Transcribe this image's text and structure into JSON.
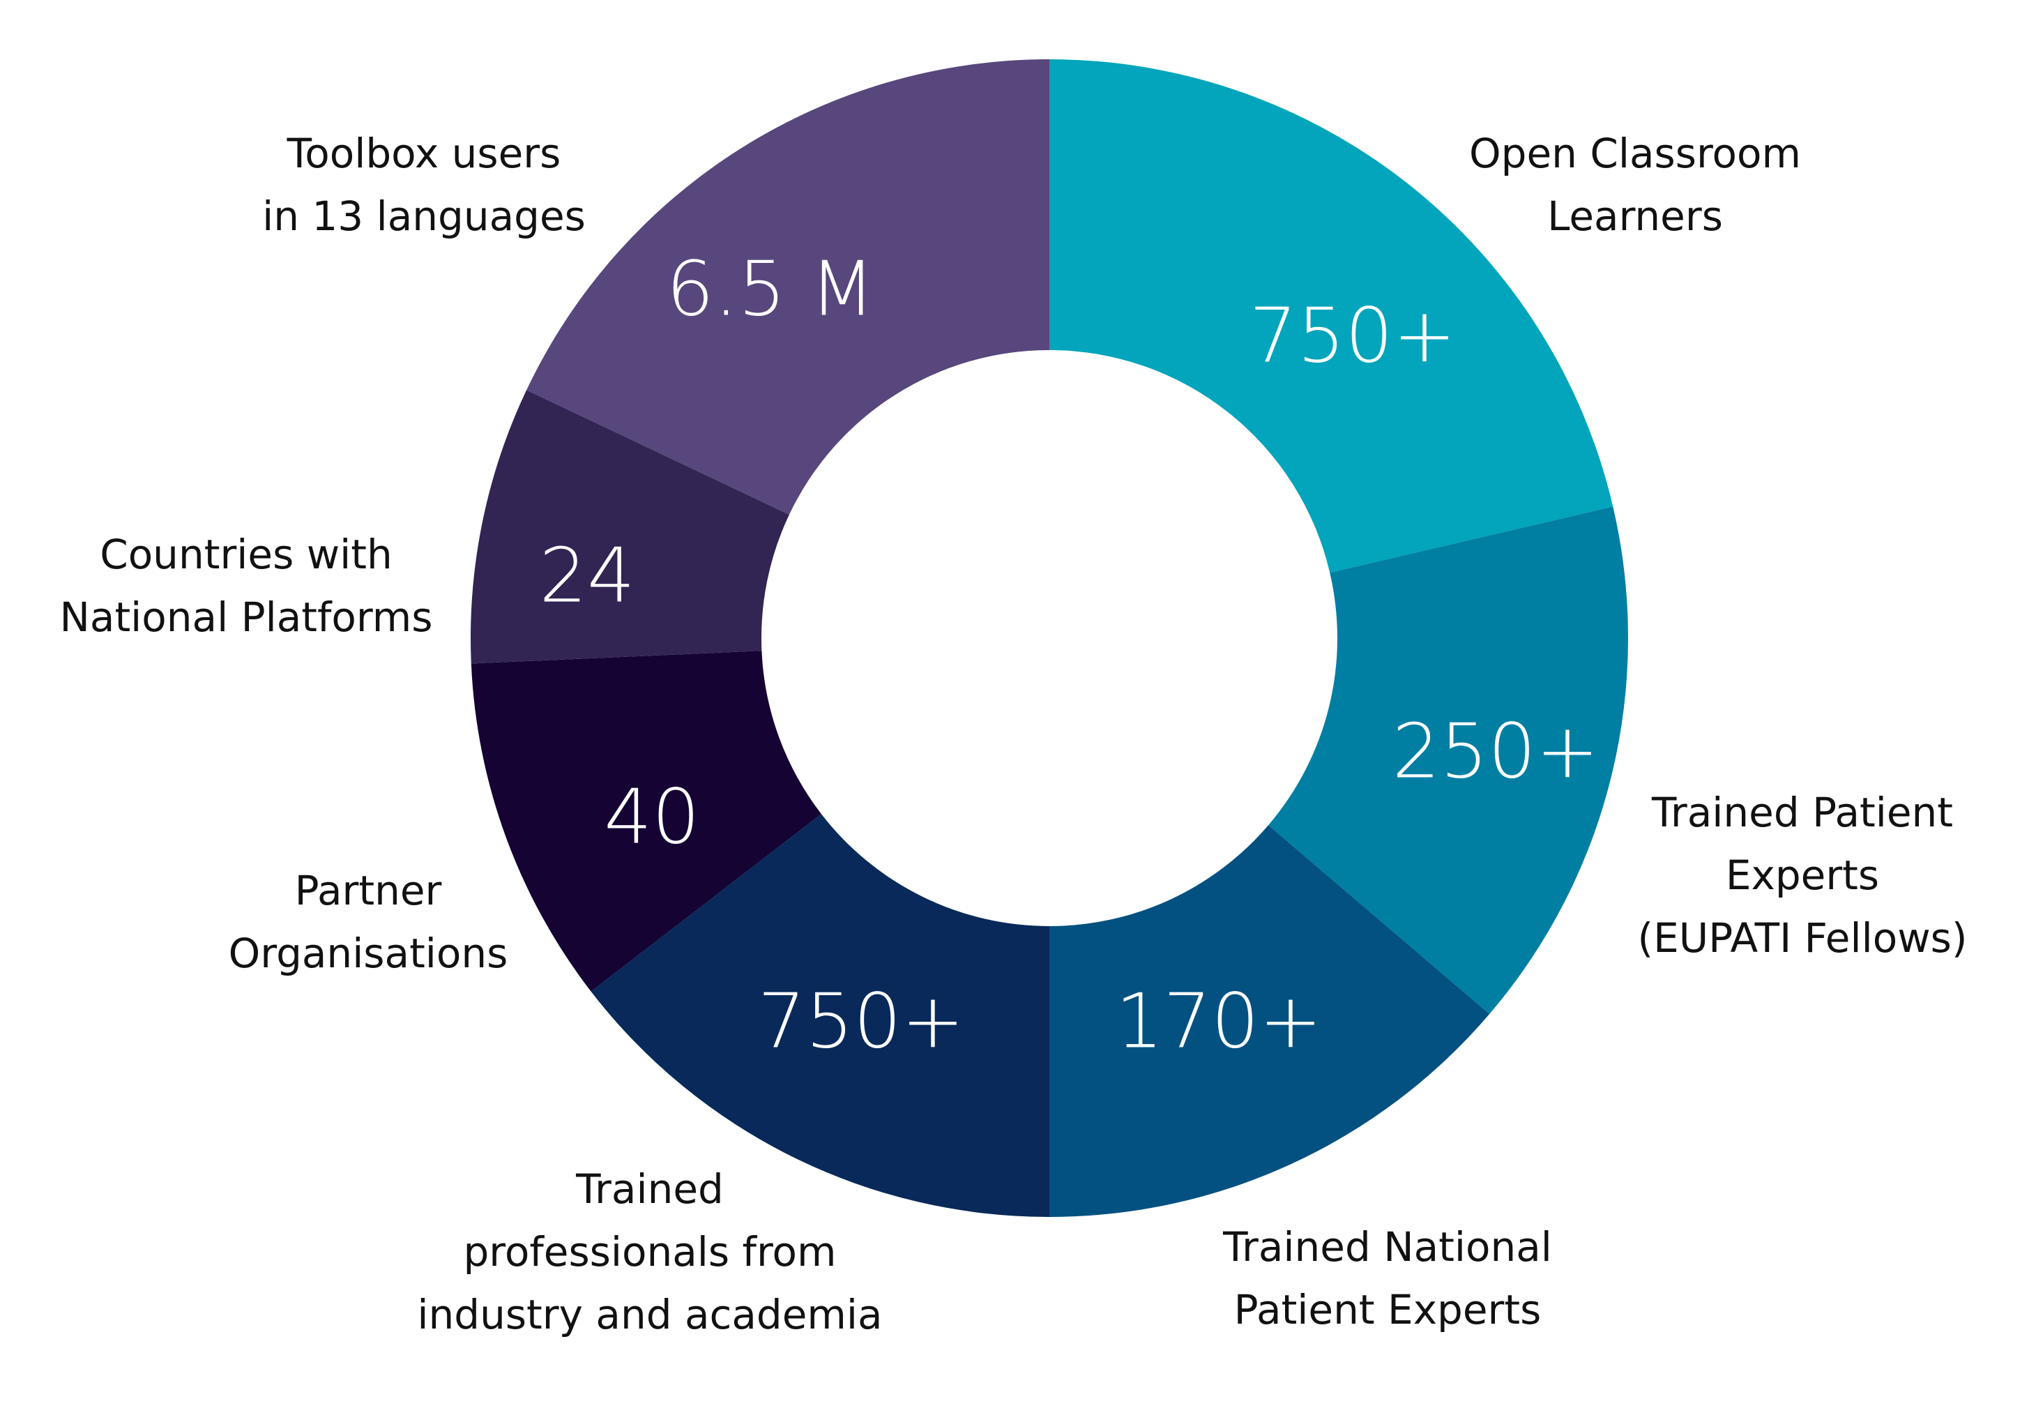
{
  "chart_data": {
    "type": "pie",
    "variant": "donut",
    "title": "",
    "start": "top",
    "direction": "clockwise",
    "segments": [
      {
        "label_lines": [
          "Open Classroom",
          "Learners"
        ],
        "value_label": "750+",
        "share": 0.2135,
        "color": "#02a5bb"
      },
      {
        "label_lines": [
          "Trained Patient",
          "Experts",
          "(EUPATI Fellows)"
        ],
        "value_label": "250+",
        "share": 0.149,
        "color": "#017fa3"
      },
      {
        "label_lines": [
          "Trained National",
          "Patient Experts"
        ],
        "value_label": "170+",
        "share": 0.1375,
        "color": "#025181"
      },
      {
        "label_lines": [
          "Trained",
          "professionals from",
          "industry and academia"
        ],
        "value_label": "750+",
        "share": 0.1455,
        "color": "#09295a"
      },
      {
        "label_lines": [
          "Partner",
          "Organisations"
        ],
        "value_label": "40",
        "share": 0.0975,
        "color": "#140333"
      },
      {
        "label_lines": [
          "Countries with",
          "National Platforms"
        ],
        "value_label": "24",
        "share": 0.0775,
        "color": "#322453"
      },
      {
        "label_lines": [
          "Toolbox users",
          "in 13 languages"
        ],
        "value_label": "6.5 M",
        "share": 0.1795,
        "color": "#58477c"
      }
    ],
    "legend": "none"
  }
}
